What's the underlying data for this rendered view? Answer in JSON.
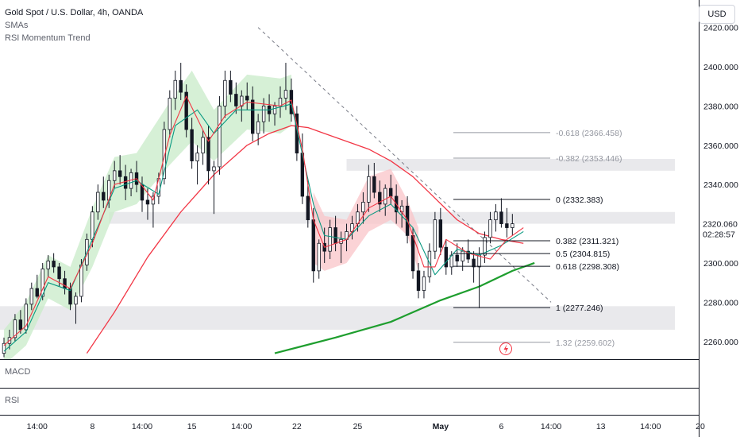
{
  "legend": {
    "title": "Gold Spot / U.S. Dollar, 4h, OANDA",
    "indicator1": "SMAs",
    "indicator2": "RSI Momentum Trend"
  },
  "currency_button": "USD",
  "panes": {
    "macd": "MACD",
    "rsi": "RSI"
  },
  "price_badge": {
    "value": "2320.060",
    "countdown": "02:28:57",
    "color": "#f23645"
  },
  "colors": {
    "up": "#131722",
    "down": "#131722",
    "sma_fast": "#f23645",
    "sma_mid": "#089981",
    "sma_slow": "#1e9e2e",
    "band_green": "#c8ebc8",
    "band_red": "#f9c4c8",
    "zone": "#e9e9ec",
    "fib": "#9598a1",
    "fib_key": "#131722",
    "trend": "#787b86"
  },
  "chart_data": {
    "type": "candlestick",
    "title": "Gold Spot / U.S. Dollar, 4h, OANDA",
    "ylim": [
      2251,
      2434
    ],
    "y_ticks": [
      2260,
      2280,
      2300,
      2320,
      2340,
      2360,
      2380,
      2400,
      2420
    ],
    "y_tick_labels": [
      "2260.000",
      "2280.000",
      "2300.000",
      "2320.000",
      "2340.000",
      "2360.000",
      "2380.000",
      "2400.000",
      "2420.000"
    ],
    "x_ticks": [
      {
        "label": "14:00",
        "i": 6
      },
      {
        "label": "8",
        "i": 16
      },
      {
        "label": "14:00",
        "i": 25
      },
      {
        "label": "15",
        "i": 34
      },
      {
        "label": "14:00",
        "i": 43
      },
      {
        "label": "22",
        "i": 53
      },
      {
        "label": "25",
        "i": 64
      },
      {
        "label": "May",
        "i": 79,
        "bold": true
      },
      {
        "label": "6",
        "i": 90
      },
      {
        "label": "14:00",
        "i": 99
      },
      {
        "label": "13",
        "i": 108
      },
      {
        "label": "14:00",
        "i": 117
      },
      {
        "label": "20",
        "i": 126
      }
    ],
    "ohlc": [
      [
        2254,
        2262,
        2252,
        2259
      ],
      [
        2259,
        2266,
        2256,
        2262
      ],
      [
        2262,
        2274,
        2260,
        2271
      ],
      [
        2271,
        2276,
        2264,
        2266
      ],
      [
        2266,
        2282,
        2264,
        2279
      ],
      [
        2279,
        2290,
        2276,
        2287
      ],
      [
        2287,
        2294,
        2282,
        2283
      ],
      [
        2283,
        2300,
        2281,
        2297
      ],
      [
        2297,
        2304,
        2293,
        2301
      ],
      [
        2301,
        2305,
        2295,
        2298
      ],
      [
        2298,
        2300,
        2288,
        2292
      ],
      [
        2292,
        2296,
        2284,
        2287
      ],
      [
        2287,
        2290,
        2276,
        2279
      ],
      [
        2279,
        2285,
        2269,
        2283
      ],
      [
        2283,
        2302,
        2280,
        2299
      ],
      [
        2299,
        2315,
        2296,
        2312
      ],
      [
        2312,
        2329,
        2308,
        2326
      ],
      [
        2326,
        2340,
        2322,
        2336
      ],
      [
        2336,
        2344,
        2328,
        2332
      ],
      [
        2332,
        2345,
        2328,
        2342
      ],
      [
        2342,
        2352,
        2338,
        2347
      ],
      [
        2347,
        2355,
        2340,
        2344
      ],
      [
        2344,
        2350,
        2332,
        2338
      ],
      [
        2338,
        2348,
        2334,
        2346
      ],
      [
        2346,
        2352,
        2336,
        2340
      ],
      [
        2340,
        2344,
        2326,
        2332
      ],
      [
        2332,
        2338,
        2322,
        2330
      ],
      [
        2330,
        2336,
        2318,
        2334
      ],
      [
        2334,
        2346,
        2330,
        2343
      ],
      [
        2343,
        2372,
        2340,
        2368
      ],
      [
        2368,
        2388,
        2364,
        2384
      ],
      [
        2384,
        2398,
        2378,
        2393
      ],
      [
        2393,
        2402,
        2383,
        2387
      ],
      [
        2387,
        2391,
        2364,
        2368
      ],
      [
        2368,
        2374,
        2348,
        2352
      ],
      [
        2352,
        2360,
        2340,
        2356
      ],
      [
        2356,
        2368,
        2350,
        2364
      ],
      [
        2364,
        2370,
        2340,
        2347
      ],
      [
        2347,
        2352,
        2325,
        2349
      ],
      [
        2349,
        2385,
        2345,
        2380
      ],
      [
        2380,
        2398,
        2374,
        2393
      ],
      [
        2393,
        2398,
        2382,
        2386
      ],
      [
        2386,
        2392,
        2376,
        2380
      ],
      [
        2380,
        2388,
        2372,
        2385
      ],
      [
        2385,
        2392,
        2378,
        2383
      ],
      [
        2383,
        2390,
        2362,
        2366
      ],
      [
        2366,
        2376,
        2360,
        2372
      ],
      [
        2372,
        2384,
        2366,
        2380
      ],
      [
        2380,
        2386,
        2372,
        2376
      ],
      [
        2376,
        2382,
        2370,
        2380
      ],
      [
        2380,
        2390,
        2374,
        2384
      ],
      [
        2384,
        2402,
        2378,
        2388
      ],
      [
        2388,
        2394,
        2372,
        2376
      ],
      [
        2376,
        2380,
        2352,
        2356
      ],
      [
        2356,
        2366,
        2330,
        2334
      ],
      [
        2334,
        2342,
        2318,
        2322
      ],
      [
        2322,
        2328,
        2290,
        2296
      ],
      [
        2296,
        2312,
        2292,
        2310
      ],
      [
        2310,
        2318,
        2300,
        2306
      ],
      [
        2306,
        2322,
        2302,
        2318
      ],
      [
        2318,
        2324,
        2306,
        2310
      ],
      [
        2310,
        2316,
        2300,
        2312
      ],
      [
        2312,
        2320,
        2306,
        2316
      ],
      [
        2316,
        2324,
        2312,
        2320
      ],
      [
        2320,
        2330,
        2316,
        2326
      ],
      [
        2326,
        2336,
        2320,
        2331
      ],
      [
        2331,
        2350,
        2326,
        2344
      ],
      [
        2344,
        2351,
        2333,
        2336
      ],
      [
        2336,
        2342,
        2326,
        2330
      ],
      [
        2330,
        2340,
        2324,
        2338
      ],
      [
        2338,
        2345,
        2330,
        2334
      ],
      [
        2334,
        2340,
        2320,
        2326
      ],
      [
        2326,
        2332,
        2318,
        2329
      ],
      [
        2329,
        2334,
        2310,
        2314
      ],
      [
        2314,
        2318,
        2292,
        2296
      ],
      [
        2296,
        2300,
        2282,
        2286
      ],
      [
        2286,
        2296,
        2282,
        2293
      ],
      [
        2293,
        2310,
        2290,
        2306
      ],
      [
        2306,
        2326,
        2302,
        2322
      ],
      [
        2322,
        2328,
        2304,
        2308
      ],
      [
        2308,
        2312,
        2294,
        2298
      ],
      [
        2298,
        2306,
        2294,
        2304
      ],
      [
        2304,
        2310,
        2298,
        2301
      ],
      [
        2301,
        2308,
        2296,
        2306
      ],
      [
        2306,
        2312,
        2300,
        2302
      ],
      [
        2302,
        2306,
        2290,
        2298
      ],
      [
        2298,
        2308,
        2277,
        2304
      ],
      [
        2304,
        2316,
        2300,
        2313
      ],
      [
        2313,
        2326,
        2310,
        2322
      ],
      [
        2322,
        2330,
        2316,
        2326
      ],
      [
        2326,
        2333,
        2318,
        2320
      ],
      [
        2320,
        2328,
        2313,
        2318
      ],
      [
        2318,
        2325,
        2314,
        2320
      ]
    ],
    "sma_fast": [
      [
        0,
        2258
      ],
      [
        4,
        2268
      ],
      [
        8,
        2293
      ],
      [
        12,
        2287
      ],
      [
        16,
        2310
      ],
      [
        20,
        2340
      ],
      [
        24,
        2343
      ],
      [
        27,
        2332
      ],
      [
        30,
        2365
      ],
      [
        33,
        2385
      ],
      [
        37,
        2362
      ],
      [
        40,
        2375
      ],
      [
        44,
        2382
      ],
      [
        50,
        2380
      ],
      [
        52,
        2383
      ],
      [
        54,
        2358
      ],
      [
        56,
        2322
      ],
      [
        58,
        2308
      ],
      [
        62,
        2312
      ],
      [
        66,
        2328
      ],
      [
        70,
        2334
      ],
      [
        73,
        2322
      ],
      [
        76,
        2298
      ],
      [
        78,
        2298
      ],
      [
        80,
        2312
      ],
      [
        84,
        2305
      ],
      [
        88,
        2302
      ],
      [
        91,
        2312
      ],
      [
        94,
        2318
      ]
    ],
    "sma_mid": [
      [
        0,
        2255
      ],
      [
        4,
        2265
      ],
      [
        8,
        2290
      ],
      [
        12,
        2286
      ],
      [
        16,
        2312
      ],
      [
        20,
        2338
      ],
      [
        24,
        2342
      ],
      [
        28,
        2335
      ],
      [
        31,
        2370
      ],
      [
        35,
        2378
      ],
      [
        38,
        2366
      ],
      [
        42,
        2378
      ],
      [
        48,
        2378
      ],
      [
        52,
        2381
      ],
      [
        56,
        2330
      ],
      [
        58,
        2314
      ],
      [
        62,
        2312
      ],
      [
        66,
        2324
      ],
      [
        70,
        2330
      ],
      [
        74,
        2318
      ],
      [
        78,
        2294
      ],
      [
        82,
        2307
      ],
      [
        86,
        2304
      ],
      [
        90,
        2309
      ],
      [
        94,
        2316
      ]
    ],
    "sma_slow": [
      [
        15,
        2254
      ],
      [
        20,
        2275
      ],
      [
        26,
        2303
      ],
      [
        32,
        2326
      ],
      [
        38,
        2345
      ],
      [
        44,
        2360
      ],
      [
        48,
        2366
      ],
      [
        52,
        2370
      ],
      [
        55,
        2369
      ],
      [
        58,
        2366
      ],
      [
        62,
        2362
      ],
      [
        66,
        2358
      ],
      [
        70,
        2352
      ],
      [
        74,
        2344
      ],
      [
        78,
        2333
      ],
      [
        82,
        2322
      ],
      [
        86,
        2315
      ],
      [
        90,
        2312
      ],
      [
        94,
        2310
      ]
    ],
    "sma_long": [
      [
        49,
        2254
      ],
      [
        60,
        2262
      ],
      [
        70,
        2270
      ],
      [
        79,
        2281
      ],
      [
        86,
        2288
      ],
      [
        92,
        2296
      ],
      [
        96,
        2300
      ]
    ],
    "band_green": [
      [
        0,
        2248,
        2266
      ],
      [
        4,
        2258,
        2280
      ],
      [
        8,
        2282,
        2304
      ],
      [
        12,
        2276,
        2298
      ],
      [
        16,
        2298,
        2328
      ],
      [
        20,
        2326,
        2354
      ],
      [
        24,
        2330,
        2356
      ],
      [
        30,
        2350,
        2382
      ],
      [
        34,
        2362,
        2398
      ],
      [
        38,
        2352,
        2378
      ],
      [
        44,
        2368,
        2396
      ],
      [
        50,
        2366,
        2394
      ],
      [
        52,
        2370,
        2396
      ]
    ],
    "band_red": [
      [
        56,
        2300,
        2336
      ],
      [
        58,
        2296,
        2324
      ],
      [
        62,
        2300,
        2322
      ],
      [
        66,
        2316,
        2344
      ],
      [
        70,
        2322,
        2348
      ],
      [
        73,
        2314,
        2332
      ],
      [
        75,
        2296,
        2318
      ]
    ],
    "zones": [
      {
        "from": 2347,
        "to": 2353,
        "x0": 62
      },
      {
        "from": 2320,
        "to": 2326,
        "x0": 19
      },
      {
        "from": 2266,
        "to": 2278,
        "x0": -1
      }
    ],
    "fib_levels": [
      {
        "label": "-0.618 (2366.458)",
        "price": 2366.458,
        "key": false
      },
      {
        "label": "-0.382 (2353.446)",
        "price": 2353.446,
        "key": false
      },
      {
        "label": "0 (2332.383)",
        "price": 2332.383,
        "key": true
      },
      {
        "label": "0.382 (2311.321)",
        "price": 2311.321,
        "key": true
      },
      {
        "label": "0.5 (2304.815)",
        "price": 2304.815,
        "key": true
      },
      {
        "label": "0.618 (2298.308)",
        "price": 2298.308,
        "key": true
      },
      {
        "label": "1 (2277.246)",
        "price": 2277.246,
        "key": true
      },
      {
        "label": "1.32 (2259.602)",
        "price": 2259.602,
        "key": false
      }
    ],
    "trendline": [
      [
        46,
        2420
      ],
      [
        99,
        2280
      ]
    ]
  }
}
